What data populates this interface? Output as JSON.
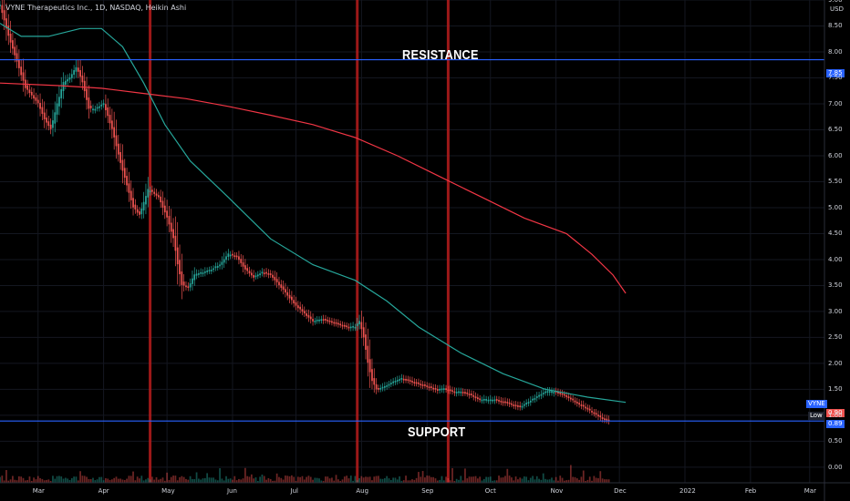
{
  "header": {
    "title": "VYNE Therapeutics Inc., 1D, NASDAQ, Heikin Ashi",
    "currency": "USD"
  },
  "annotations": {
    "resistance": "RESISTANCE",
    "support": "SUPPORT"
  },
  "colors": {
    "background": "#000000",
    "up": "#26a69a",
    "down": "#ef5350",
    "slow_ma": "#f23645",
    "fast_ma": "#26a69a",
    "level_line": "#2962ff",
    "event_band": "#b71c1c"
  },
  "tags": {
    "symbol": "VYNE",
    "price": "0.90",
    "low_label": "Low",
    "low_value": "0.89",
    "resistance_value": "7.85"
  },
  "chart_data": {
    "type": "candlestick",
    "style": "Heikin Ashi",
    "y_axis": {
      "min": -0.3,
      "max": 9.0,
      "ticks": [
        "9.00",
        "8.50",
        "8.00",
        "7.50",
        "7.00",
        "6.50",
        "6.00",
        "5.50",
        "5.00",
        "4.50",
        "4.00",
        "3.50",
        "3.00",
        "2.50",
        "2.00",
        "1.50",
        "1.00",
        "0.50",
        "0.00"
      ]
    },
    "x_axis": {
      "tick_labels": [
        "Mar",
        "Apr",
        "May",
        "Jun",
        "Jul",
        "Aug",
        "Sep",
        "Oct",
        "Nov",
        "Dec",
        "2022",
        "Feb",
        "Mar"
      ],
      "tick_days": [
        0,
        31,
        61,
        92,
        122,
        153,
        184,
        214,
        245,
        275,
        306,
        337,
        365
      ],
      "day_range": [
        -18,
        372
      ]
    },
    "price_path": [
      [
        -18,
        8.9
      ],
      [
        -14,
        8.3
      ],
      [
        -10,
        7.8
      ],
      [
        -6,
        7.3
      ],
      [
        0,
        7.0
      ],
      [
        3,
        6.7
      ],
      [
        6,
        6.5
      ],
      [
        9,
        7.0
      ],
      [
        12,
        7.4
      ],
      [
        15,
        7.5
      ],
      [
        18,
        7.7
      ],
      [
        21,
        7.4
      ],
      [
        24,
        6.9
      ],
      [
        27,
        6.9
      ],
      [
        31,
        7.0
      ],
      [
        35,
        6.5
      ],
      [
        40,
        5.7
      ],
      [
        45,
        5.0
      ],
      [
        48,
        4.85
      ],
      [
        50,
        5.1
      ],
      [
        52,
        5.35
      ],
      [
        57,
        5.2
      ],
      [
        61,
        4.8
      ],
      [
        64,
        4.4
      ],
      [
        66,
        3.9
      ],
      [
        68,
        3.5
      ],
      [
        71,
        3.45
      ],
      [
        74,
        3.7
      ],
      [
        78,
        3.75
      ],
      [
        82,
        3.8
      ],
      [
        86,
        3.9
      ],
      [
        90,
        4.1
      ],
      [
        94,
        4.05
      ],
      [
        98,
        3.8
      ],
      [
        102,
        3.65
      ],
      [
        106,
        3.75
      ],
      [
        110,
        3.7
      ],
      [
        114,
        3.5
      ],
      [
        118,
        3.3
      ],
      [
        122,
        3.1
      ],
      [
        126,
        2.95
      ],
      [
        130,
        2.8
      ],
      [
        134,
        2.85
      ],
      [
        138,
        2.8
      ],
      [
        142,
        2.75
      ],
      [
        146,
        2.7
      ],
      [
        150,
        2.7
      ],
      [
        152,
        2.8
      ],
      [
        154,
        2.5
      ],
      [
        156,
        2.0
      ],
      [
        158,
        1.65
      ],
      [
        160,
        1.5
      ],
      [
        164,
        1.55
      ],
      [
        168,
        1.65
      ],
      [
        172,
        1.7
      ],
      [
        176,
        1.65
      ],
      [
        180,
        1.6
      ],
      [
        184,
        1.55
      ],
      [
        188,
        1.5
      ],
      [
        192,
        1.5
      ],
      [
        196,
        1.45
      ],
      [
        200,
        1.45
      ],
      [
        204,
        1.4
      ],
      [
        208,
        1.3
      ],
      [
        212,
        1.3
      ],
      [
        216,
        1.3
      ],
      [
        220,
        1.25
      ],
      [
        224,
        1.2
      ],
      [
        228,
        1.15
      ],
      [
        232,
        1.25
      ],
      [
        236,
        1.35
      ],
      [
        240,
        1.45
      ],
      [
        244,
        1.45
      ],
      [
        248,
        1.4
      ],
      [
        252,
        1.3
      ],
      [
        256,
        1.2
      ],
      [
        260,
        1.1
      ],
      [
        264,
        1.0
      ],
      [
        267,
        0.92
      ],
      [
        270,
        0.9
      ]
    ],
    "series": [
      {
        "name": "slow MA",
        "color": "#f23645",
        "points": [
          [
            -18,
            7.4
          ],
          [
            10,
            7.35
          ],
          [
            30,
            7.3
          ],
          [
            50,
            7.2
          ],
          [
            70,
            7.1
          ],
          [
            90,
            6.95
          ],
          [
            110,
            6.78
          ],
          [
            130,
            6.6
          ],
          [
            150,
            6.35
          ],
          [
            170,
            6.0
          ],
          [
            190,
            5.6
          ],
          [
            210,
            5.2
          ],
          [
            230,
            4.8
          ],
          [
            250,
            4.5
          ],
          [
            262,
            4.1
          ],
          [
            272,
            3.7
          ],
          [
            278,
            3.35
          ]
        ]
      },
      {
        "name": "fast MA",
        "color": "#26a69a",
        "points": [
          [
            -18,
            8.55
          ],
          [
            -8,
            8.3
          ],
          [
            5,
            8.3
          ],
          [
            20,
            8.45
          ],
          [
            30,
            8.45
          ],
          [
            40,
            8.1
          ],
          [
            50,
            7.4
          ],
          [
            60,
            6.6
          ],
          [
            72,
            5.9
          ],
          [
            90,
            5.2
          ],
          [
            110,
            4.4
          ],
          [
            130,
            3.9
          ],
          [
            150,
            3.6
          ],
          [
            165,
            3.2
          ],
          [
            180,
            2.7
          ],
          [
            200,
            2.2
          ],
          [
            220,
            1.8
          ],
          [
            240,
            1.5
          ],
          [
            260,
            1.35
          ],
          [
            278,
            1.25
          ]
        ]
      }
    ],
    "levels": [
      {
        "label": "RESISTANCE",
        "value": 7.85
      },
      {
        "label": "SUPPORT",
        "value": 0.89
      }
    ],
    "event_bands_days": [
      53,
      151,
      194
    ],
    "volume_spike_day": 271
  }
}
